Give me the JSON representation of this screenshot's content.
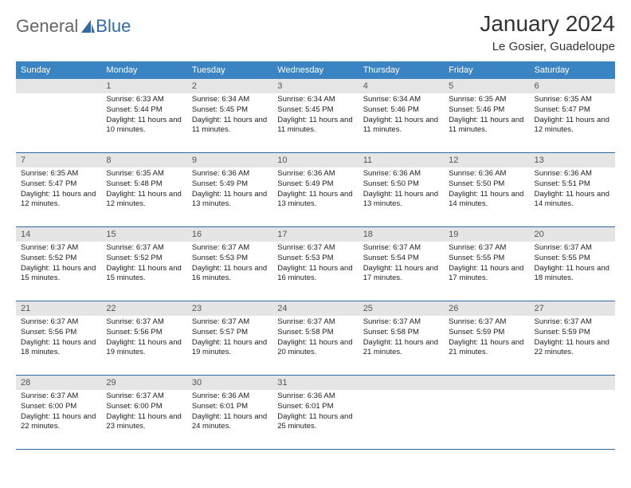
{
  "logo": {
    "word1": "General",
    "word2": "Blue"
  },
  "title": "January 2024",
  "location": "Le Gosier, Guadeloupe",
  "colors": {
    "header_bg": "#3a84c4",
    "header_text": "#ffffff",
    "daynum_bg": "#e5e5e5",
    "row_border": "#2f6aa8",
    "logo_gray": "#666666",
    "logo_blue": "#2f6aa8"
  },
  "weekdays": [
    "Sunday",
    "Monday",
    "Tuesday",
    "Wednesday",
    "Thursday",
    "Friday",
    "Saturday"
  ],
  "weeks": [
    [
      {
        "n": "",
        "blank": true
      },
      {
        "n": "1",
        "sr": "6:33 AM",
        "ss": "5:44 PM",
        "dl": "11 hours and 10 minutes."
      },
      {
        "n": "2",
        "sr": "6:34 AM",
        "ss": "5:45 PM",
        "dl": "11 hours and 11 minutes."
      },
      {
        "n": "3",
        "sr": "6:34 AM",
        "ss": "5:45 PM",
        "dl": "11 hours and 11 minutes."
      },
      {
        "n": "4",
        "sr": "6:34 AM",
        "ss": "5:46 PM",
        "dl": "11 hours and 11 minutes."
      },
      {
        "n": "5",
        "sr": "6:35 AM",
        "ss": "5:46 PM",
        "dl": "11 hours and 11 minutes."
      },
      {
        "n": "6",
        "sr": "6:35 AM",
        "ss": "5:47 PM",
        "dl": "11 hours and 12 minutes."
      }
    ],
    [
      {
        "n": "7",
        "sr": "6:35 AM",
        "ss": "5:47 PM",
        "dl": "11 hours and 12 minutes."
      },
      {
        "n": "8",
        "sr": "6:35 AM",
        "ss": "5:48 PM",
        "dl": "11 hours and 12 minutes."
      },
      {
        "n": "9",
        "sr": "6:36 AM",
        "ss": "5:49 PM",
        "dl": "11 hours and 13 minutes."
      },
      {
        "n": "10",
        "sr": "6:36 AM",
        "ss": "5:49 PM",
        "dl": "11 hours and 13 minutes."
      },
      {
        "n": "11",
        "sr": "6:36 AM",
        "ss": "5:50 PM",
        "dl": "11 hours and 13 minutes."
      },
      {
        "n": "12",
        "sr": "6:36 AM",
        "ss": "5:50 PM",
        "dl": "11 hours and 14 minutes."
      },
      {
        "n": "13",
        "sr": "6:36 AM",
        "ss": "5:51 PM",
        "dl": "11 hours and 14 minutes."
      }
    ],
    [
      {
        "n": "14",
        "sr": "6:37 AM",
        "ss": "5:52 PM",
        "dl": "11 hours and 15 minutes."
      },
      {
        "n": "15",
        "sr": "6:37 AM",
        "ss": "5:52 PM",
        "dl": "11 hours and 15 minutes."
      },
      {
        "n": "16",
        "sr": "6:37 AM",
        "ss": "5:53 PM",
        "dl": "11 hours and 16 minutes."
      },
      {
        "n": "17",
        "sr": "6:37 AM",
        "ss": "5:53 PM",
        "dl": "11 hours and 16 minutes."
      },
      {
        "n": "18",
        "sr": "6:37 AM",
        "ss": "5:54 PM",
        "dl": "11 hours and 17 minutes."
      },
      {
        "n": "19",
        "sr": "6:37 AM",
        "ss": "5:55 PM",
        "dl": "11 hours and 17 minutes."
      },
      {
        "n": "20",
        "sr": "6:37 AM",
        "ss": "5:55 PM",
        "dl": "11 hours and 18 minutes."
      }
    ],
    [
      {
        "n": "21",
        "sr": "6:37 AM",
        "ss": "5:56 PM",
        "dl": "11 hours and 18 minutes."
      },
      {
        "n": "22",
        "sr": "6:37 AM",
        "ss": "5:56 PM",
        "dl": "11 hours and 19 minutes."
      },
      {
        "n": "23",
        "sr": "6:37 AM",
        "ss": "5:57 PM",
        "dl": "11 hours and 19 minutes."
      },
      {
        "n": "24",
        "sr": "6:37 AM",
        "ss": "5:58 PM",
        "dl": "11 hours and 20 minutes."
      },
      {
        "n": "25",
        "sr": "6:37 AM",
        "ss": "5:58 PM",
        "dl": "11 hours and 21 minutes."
      },
      {
        "n": "26",
        "sr": "6:37 AM",
        "ss": "5:59 PM",
        "dl": "11 hours and 21 minutes."
      },
      {
        "n": "27",
        "sr": "6:37 AM",
        "ss": "5:59 PM",
        "dl": "11 hours and 22 minutes."
      }
    ],
    [
      {
        "n": "28",
        "sr": "6:37 AM",
        "ss": "6:00 PM",
        "dl": "11 hours and 22 minutes."
      },
      {
        "n": "29",
        "sr": "6:37 AM",
        "ss": "6:00 PM",
        "dl": "11 hours and 23 minutes."
      },
      {
        "n": "30",
        "sr": "6:36 AM",
        "ss": "6:01 PM",
        "dl": "11 hours and 24 minutes."
      },
      {
        "n": "31",
        "sr": "6:36 AM",
        "ss": "6:01 PM",
        "dl": "11 hours and 25 minutes."
      },
      {
        "n": "",
        "blank": true
      },
      {
        "n": "",
        "blank": true
      },
      {
        "n": "",
        "blank": true
      }
    ]
  ],
  "labels": {
    "sunrise": "Sunrise: ",
    "sunset": "Sunset: ",
    "daylight": "Daylight: "
  }
}
